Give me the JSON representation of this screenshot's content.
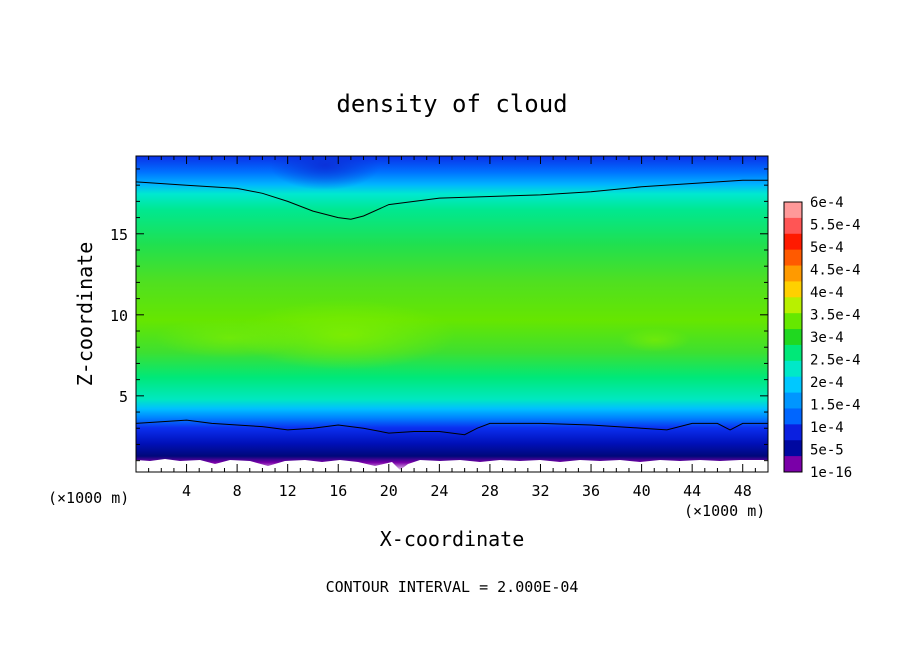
{
  "chart_data": {
    "type": "heatmap",
    "title": "density of cloud",
    "xlabel": "X-coordinate",
    "ylabel": "Z-coordinate",
    "x_unit_left": "(×1000 m)",
    "x_unit_right": "(×1000 m)",
    "footer": "CONTOUR INTERVAL = 2.000E-04",
    "xlim": [
      0,
      50
    ],
    "ylim": [
      0.3,
      19.8
    ],
    "x_ticks": [
      4,
      8,
      12,
      16,
      20,
      24,
      28,
      32,
      36,
      40,
      44,
      48
    ],
    "x_tick_labels": [
      "4",
      "8",
      "12",
      "16",
      "20",
      "24",
      "28",
      "32",
      "36",
      "40",
      "44",
      "48"
    ],
    "y_ticks": [
      5,
      10,
      15
    ],
    "y_tick_labels": [
      "5",
      "10",
      "15"
    ],
    "colorbar": {
      "levels": [
        1e-16,
        5e-05,
        0.0001,
        0.00015,
        0.0002,
        0.00025,
        0.0003,
        0.00035,
        0.0004,
        0.00045,
        0.0005,
        0.00055,
        0.0006
      ],
      "labels": [
        "1e-16",
        "5e-5",
        "1e-4",
        "1.5e-4",
        "2e-4",
        "2.5e-4",
        "3e-4",
        "3.5e-4",
        "4e-4",
        "4.5e-4",
        "5e-4",
        "5.5e-4",
        "6e-4"
      ],
      "colors": [
        "#7a00a8",
        "#0008a0",
        "#0b20e0",
        "#0066ff",
        "#0096ff",
        "#00c8ff",
        "#00e8c8",
        "#00e878",
        "#20d820",
        "#66e800",
        "#b8f000",
        "#ffd000",
        "#ff9a00",
        "#ff5a00",
        "#ff1a00",
        "#ff5555",
        "#ff9999"
      ]
    },
    "contour_lines": [
      {
        "level": 0.0002,
        "x": [
          0,
          4,
          8,
          10,
          12,
          14,
          16,
          17,
          18,
          20,
          24,
          28,
          32,
          36,
          40,
          44,
          48,
          50
        ],
        "y": [
          18.2,
          18.0,
          17.8,
          17.5,
          17.0,
          16.4,
          16.0,
          15.9,
          16.1,
          16.8,
          17.2,
          17.3,
          17.4,
          17.6,
          17.9,
          18.1,
          18.3,
          18.3
        ]
      },
      {
        "level": 0.0002,
        "x": [
          0,
          2,
          4,
          6,
          8,
          10,
          12,
          14,
          16,
          18,
          20,
          22,
          24,
          26,
          27,
          28,
          32,
          36,
          40,
          42,
          44,
          46,
          47,
          48,
          50
        ],
        "y": [
          3.3,
          3.4,
          3.5,
          3.3,
          3.2,
          3.1,
          2.9,
          3.0,
          3.2,
          3.0,
          2.7,
          2.8,
          2.8,
          2.6,
          3.0,
          3.3,
          3.3,
          3.2,
          3.0,
          2.9,
          3.3,
          3.3,
          2.9,
          3.3,
          3.3
        ]
      }
    ]
  }
}
